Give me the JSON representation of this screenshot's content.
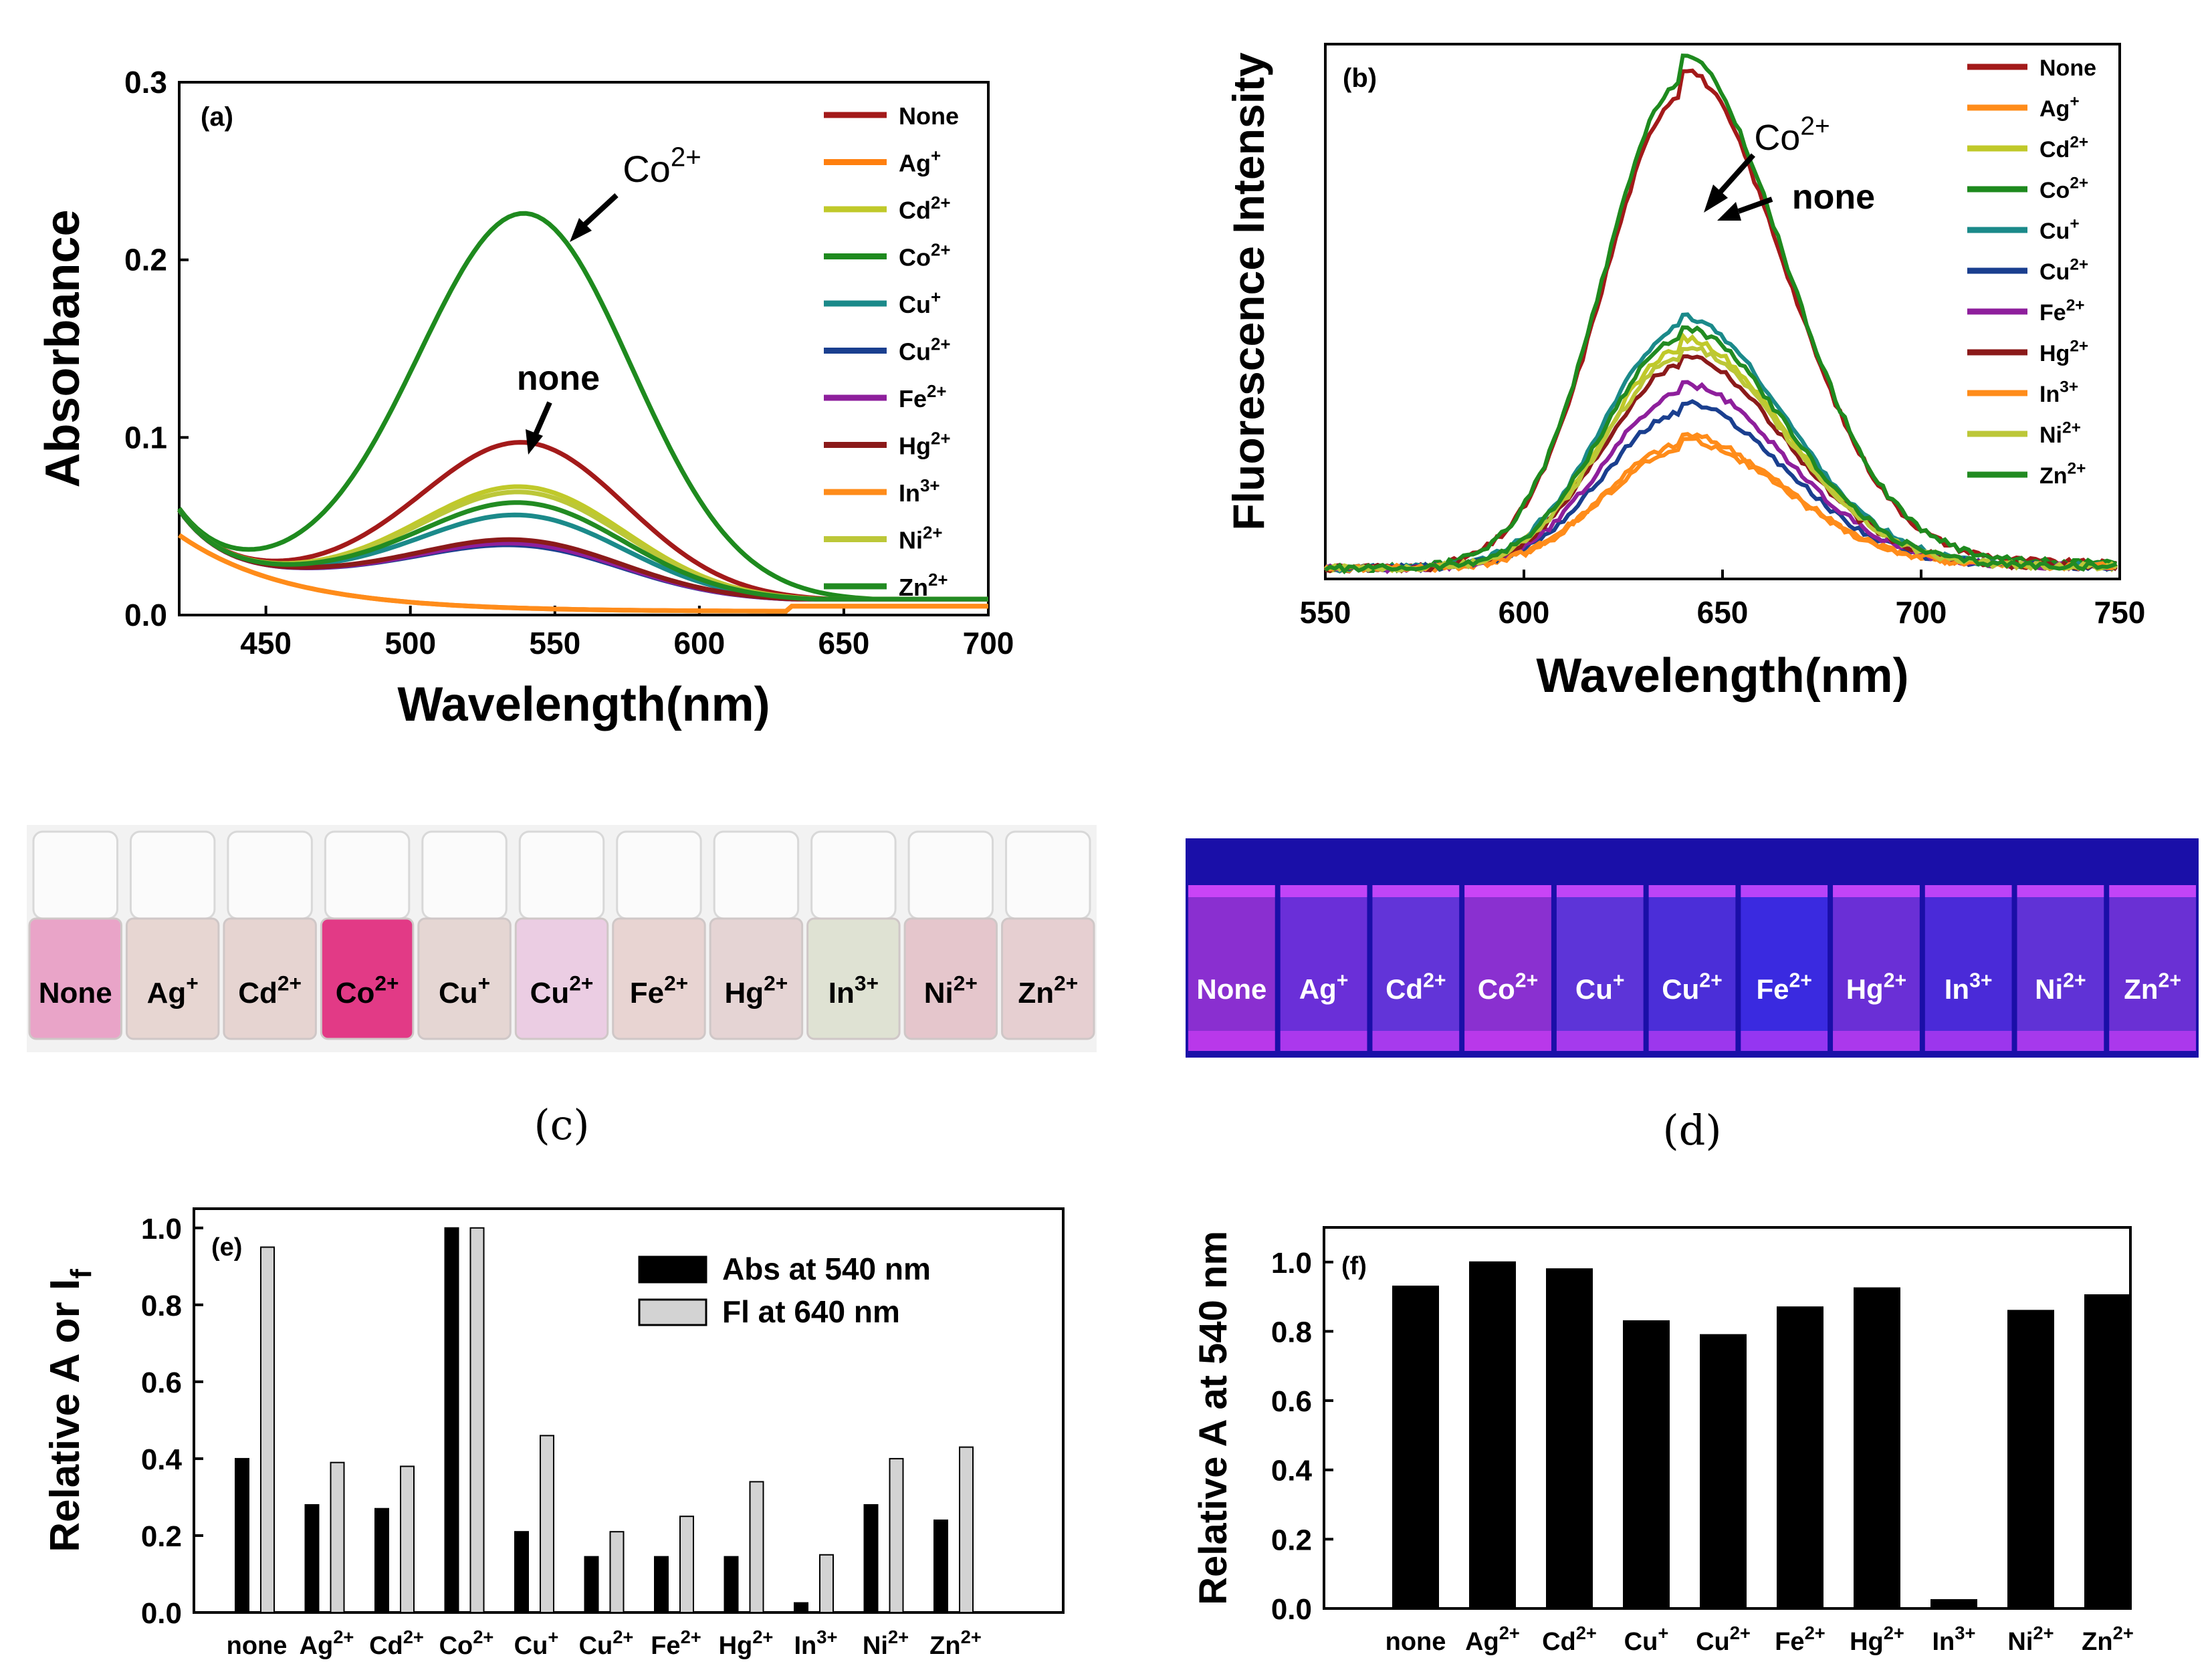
{
  "chart_data": [
    {
      "id": "a",
      "type": "line",
      "panel_label": "(a)",
      "xlabel": "Wavelength(nm)",
      "ylabel": "Absorbance",
      "xlim": [
        420,
        700
      ],
      "ylim": [
        0,
        0.3
      ],
      "xticks": [
        "450",
        "500",
        "550",
        "600",
        "650",
        "700"
      ],
      "yticks": [
        "0.0",
        "0.1",
        "0.2",
        "0.3"
      ],
      "annotations": [
        {
          "text": "Co",
          "sup": "2+"
        },
        {
          "text": "none",
          "sup": ""
        }
      ],
      "series": [
        {
          "name": "None",
          "sup": "",
          "color": "#a31a1a",
          "peak": 0.086
        },
        {
          "name": "Ag",
          "sup": "+",
          "color": "#ff7f0e",
          "peak": 0.0
        },
        {
          "name": "Cd",
          "sup": "2+",
          "color": "#c0c92a",
          "peak": 0.061
        },
        {
          "name": "Co",
          "sup": "2+",
          "color": "#1e8a1e",
          "peak": 0.215
        },
        {
          "name": "Cu",
          "sup": "+",
          "color": "#1b8a8a",
          "peak": 0.045
        },
        {
          "name": "Cu",
          "sup": "2+",
          "color": "#1a3f8f",
          "peak": 0.028
        },
        {
          "name": "Fe",
          "sup": "2+",
          "color": "#8e1f9c",
          "peak": 0.029
        },
        {
          "name": "Hg",
          "sup": "2+",
          "color": "#8b1a1a",
          "peak": 0.031
        },
        {
          "name": "In",
          "sup": "3+",
          "color": "#ff8c1a",
          "peak": 0.002
        },
        {
          "name": "Ni",
          "sup": "2+",
          "color": "#bcc738",
          "peak": 0.058
        },
        {
          "name": "Zn",
          "sup": "2+",
          "color": "#228b22",
          "peak": 0.052
        }
      ]
    },
    {
      "id": "b",
      "type": "line",
      "panel_label": "(b)",
      "xlabel": "Wavelength(nm)",
      "ylabel": "Fluorescence Intensity",
      "xlim": [
        550,
        750
      ],
      "ylim": [
        0,
        1
      ],
      "xticks": [
        "550",
        "600",
        "650",
        "700",
        "750"
      ],
      "annotations": [
        {
          "text": "Co",
          "sup": "2+"
        },
        {
          "text": "none",
          "sup": ""
        }
      ],
      "series": [
        {
          "name": "None",
          "sup": "",
          "color": "#a31a1a",
          "peak": 0.905
        },
        {
          "name": "Ag",
          "sup": "+",
          "color": "#ff8c1a",
          "peak": 0.25
        },
        {
          "name": "Cd",
          "sup": "2+",
          "color": "#c0c92a",
          "peak": 0.43
        },
        {
          "name": "Co",
          "sup": "2+",
          "color": "#1e8a1e",
          "peak": 0.93
        },
        {
          "name": "Cu",
          "sup": "+",
          "color": "#1b8a8a",
          "peak": 0.47
        },
        {
          "name": "Cu",
          "sup": "2+",
          "color": "#1a3f8f",
          "peak": 0.31
        },
        {
          "name": "Fe",
          "sup": "2+",
          "color": "#8e1f9c",
          "peak": 0.345
        },
        {
          "name": "Hg",
          "sup": "2+",
          "color": "#8b1a1a",
          "peak": 0.4
        },
        {
          "name": "In",
          "sup": "3+",
          "color": "#ff8c1a",
          "peak": 0.24
        },
        {
          "name": "Ni",
          "sup": "2+",
          "color": "#bcc738",
          "peak": 0.415
        },
        {
          "name": "Zn",
          "sup": "2+",
          "color": "#228b22",
          "peak": 0.45
        }
      ]
    },
    {
      "id": "e",
      "type": "bar",
      "panel_label": "(e)",
      "ylabel": "Relative A or I",
      "ylabel_sub": "f",
      "ylim": [
        0,
        1.05
      ],
      "yticks": [
        "0.0",
        "0.2",
        "0.4",
        "0.6",
        "0.8",
        "1.0"
      ],
      "categories": [
        {
          "name": "none",
          "sup": ""
        },
        {
          "name": "Ag",
          "sup": "2+"
        },
        {
          "name": "Cd",
          "sup": "2+"
        },
        {
          "name": "Co",
          "sup": "2+"
        },
        {
          "name": "Cu",
          "sup": "+"
        },
        {
          "name": "Cu",
          "sup": "2+"
        },
        {
          "name": "Fe",
          "sup": "2+"
        },
        {
          "name": "Hg",
          "sup": "2+"
        },
        {
          "name": "In",
          "sup": "3+"
        },
        {
          "name": "Ni",
          "sup": "2+"
        },
        {
          "name": "Zn",
          "sup": "2+"
        }
      ],
      "series": [
        {
          "name": "Abs at 540 nm",
          "color": "#000000",
          "values": [
            0.4,
            0.28,
            0.27,
            1.0,
            0.21,
            0.145,
            0.145,
            0.145,
            0.025,
            0.28,
            0.24
          ]
        },
        {
          "name": "Fl at 640 nm",
          "color": "#d3d3d3",
          "values": [
            0.95,
            0.39,
            0.38,
            1.0,
            0.46,
            0.21,
            0.25,
            0.34,
            0.15,
            0.4,
            0.43
          ]
        }
      ]
    },
    {
      "id": "f",
      "type": "bar",
      "panel_label": "(f)",
      "ylabel": "Relative A at 540 nm",
      "ylim": [
        0,
        1.1
      ],
      "yticks": [
        "0.0",
        "0.2",
        "0.4",
        "0.6",
        "0.8",
        "1.0"
      ],
      "categories": [
        {
          "name": "none",
          "sup": ""
        },
        {
          "name": "Ag",
          "sup": "2+"
        },
        {
          "name": "Cd",
          "sup": "2+"
        },
        {
          "name": "Cu",
          "sup": "+"
        },
        {
          "name": "Cu",
          "sup": "2+"
        },
        {
          "name": "Fe",
          "sup": "2+"
        },
        {
          "name": "Hg",
          "sup": "2+"
        },
        {
          "name": "In",
          "sup": "3+"
        },
        {
          "name": "Ni",
          "sup": "2+"
        },
        {
          "name": "Zn",
          "sup": "2+"
        }
      ],
      "series": [
        {
          "name": "Relative A at 540 nm",
          "color": "#000000",
          "values": [
            0.93,
            1.0,
            0.98,
            0.83,
            0.79,
            0.87,
            0.925,
            0.025,
            0.86,
            0.905
          ]
        }
      ]
    }
  ],
  "photos": {
    "c": {
      "caption": "(c)",
      "vials": [
        {
          "name": "None",
          "sup": "",
          "color": "#e9a4c8"
        },
        {
          "name": "Ag",
          "sup": "+",
          "color": "#e7d6d2"
        },
        {
          "name": "Cd",
          "sup": "2+",
          "color": "#e6d4d1"
        },
        {
          "name": "Co",
          "sup": "2+",
          "color": "#e23a86"
        },
        {
          "name": "Cu",
          "sup": "+",
          "color": "#e5d6d3"
        },
        {
          "name": "Cu",
          "sup": "2+",
          "color": "#ebcde3"
        },
        {
          "name": "Fe",
          "sup": "2+",
          "color": "#e8d4d2"
        },
        {
          "name": "Hg",
          "sup": "2+",
          "color": "#e5d4d4"
        },
        {
          "name": "In",
          "sup": "3+",
          "color": "#dfe2d3"
        },
        {
          "name": "Ni",
          "sup": "2+",
          "color": "#e5c6cc"
        },
        {
          "name": "Zn",
          "sup": "2+",
          "color": "#e6cfd1"
        }
      ]
    },
    "d": {
      "caption": "(d)",
      "vials": [
        {
          "name": "None",
          "sup": "",
          "color": "#8a2fd0"
        },
        {
          "name": "Ag",
          "sup": "+",
          "color": "#6a2fd8"
        },
        {
          "name": "Cd",
          "sup": "2+",
          "color": "#6234d8"
        },
        {
          "name": "Co",
          "sup": "2+",
          "color": "#8a30d0"
        },
        {
          "name": "Cu",
          "sup": "+",
          "color": "#5d34d8"
        },
        {
          "name": "Cu",
          "sup": "2+",
          "color": "#4b2ed8"
        },
        {
          "name": "Fe",
          "sup": "2+",
          "color": "#3a2ae0"
        },
        {
          "name": "Hg",
          "sup": "2+",
          "color": "#6a2fd6"
        },
        {
          "name": "In",
          "sup": "3+",
          "color": "#4a2ad8"
        },
        {
          "name": "Ni",
          "sup": "2+",
          "color": "#6032d6"
        },
        {
          "name": "Zn",
          "sup": "2+",
          "color": "#6a30d4"
        }
      ]
    }
  }
}
